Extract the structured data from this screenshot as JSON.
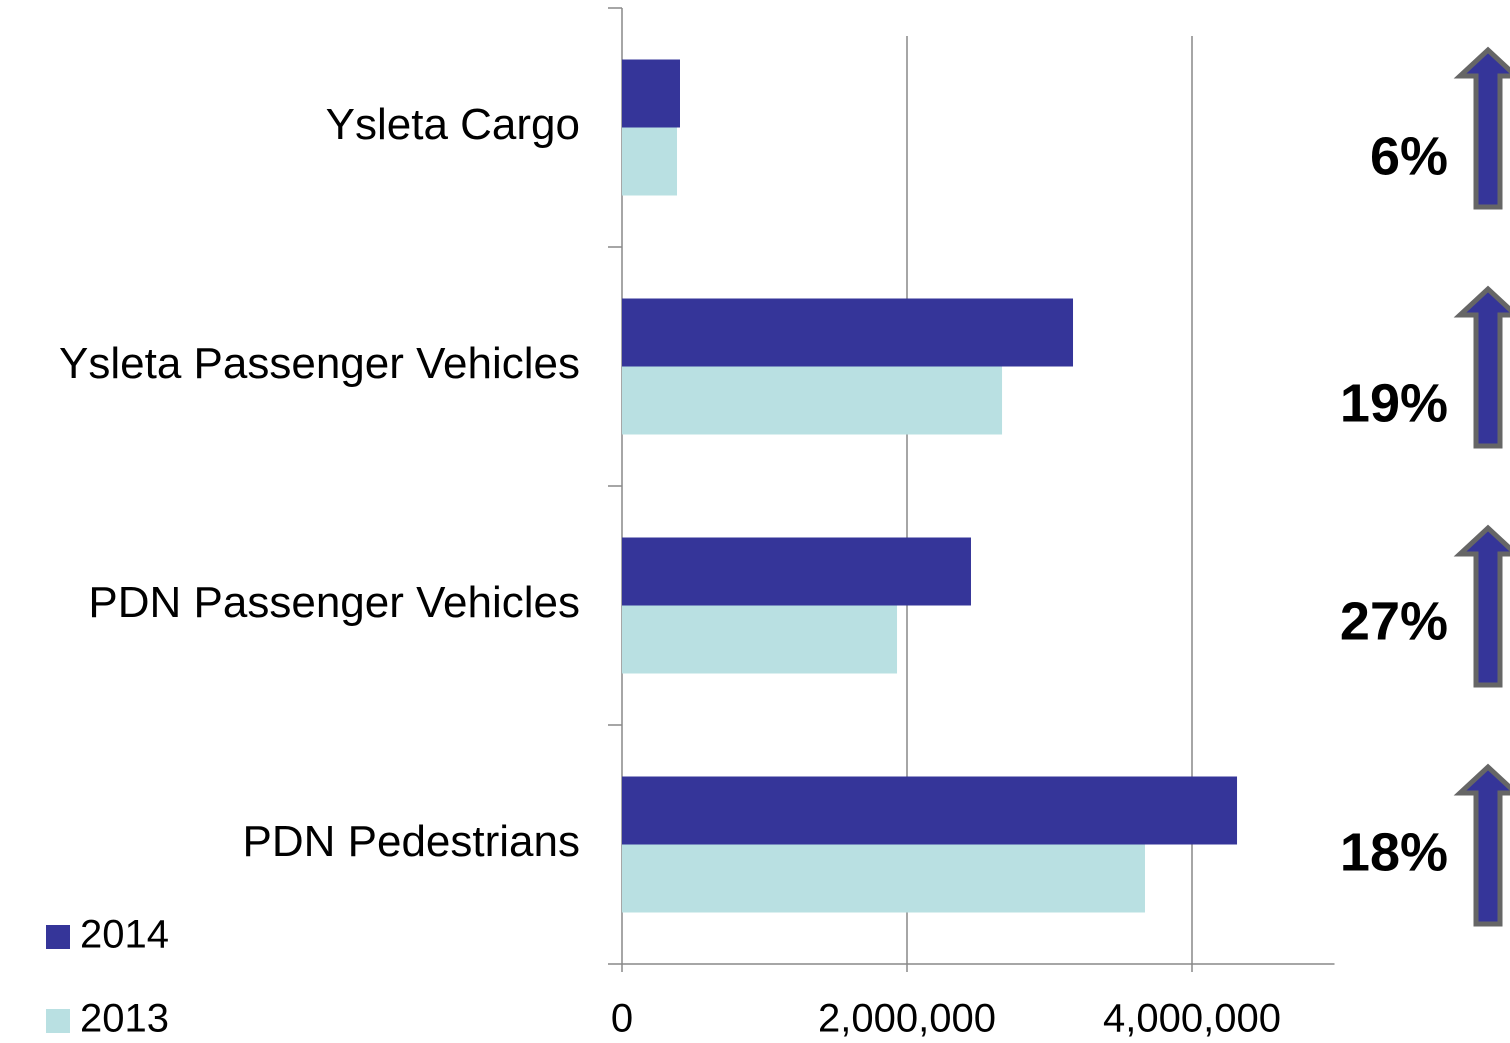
{
  "chart_data": {
    "type": "hbar",
    "categories": [
      "Ysleta Cargo",
      "Ysleta Passenger Vehicles",
      "PDN Passenger Vehicles",
      "PDN Pedestrians"
    ],
    "series": [
      {
        "name": "2014",
        "color": "#353599",
        "values": [
          407000,
          3165000,
          2449000,
          4316000
        ]
      },
      {
        "name": "2013",
        "color": "#b9e0e2",
        "values": [
          386000,
          2667000,
          1930000,
          3670000
        ]
      }
    ],
    "xlim": [
      0,
      5000000
    ],
    "xticks": [
      0,
      {
        "value": 2000000,
        "label": "2,000,000"
      },
      {
        "value": 4000000,
        "label": "4,000,000"
      }
    ],
    "grid": true,
    "annotations": [
      "6%",
      "19%",
      "27%",
      "18%"
    ],
    "legend": "bottom-left"
  }
}
